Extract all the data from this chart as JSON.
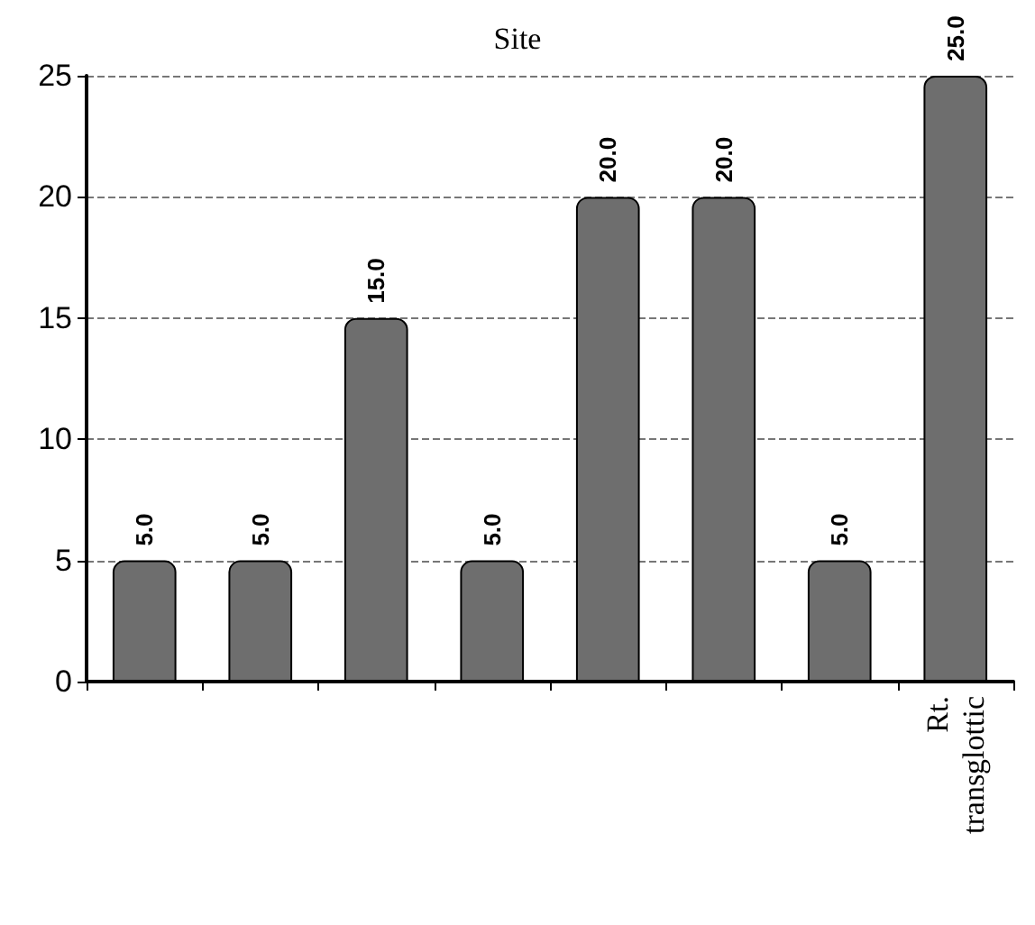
{
  "chart_data": {
    "type": "bar",
    "title": "Site",
    "categories": [
      null,
      null,
      null,
      null,
      null,
      null,
      null,
      "Rt. transglottic"
    ],
    "values": [
      5.0,
      5.0,
      15.0,
      5.0,
      20.0,
      20.0,
      5.0,
      25.0
    ],
    "value_labels": [
      "5.0",
      "5.0",
      "15.0",
      "5.0",
      "20.0",
      "20.0",
      "5.0",
      "25.0"
    ],
    "color": "#6e6e6e",
    "ylim": [
      0,
      25
    ],
    "yticks": [
      0,
      5,
      10,
      15,
      20,
      25
    ],
    "grid": "y"
  }
}
